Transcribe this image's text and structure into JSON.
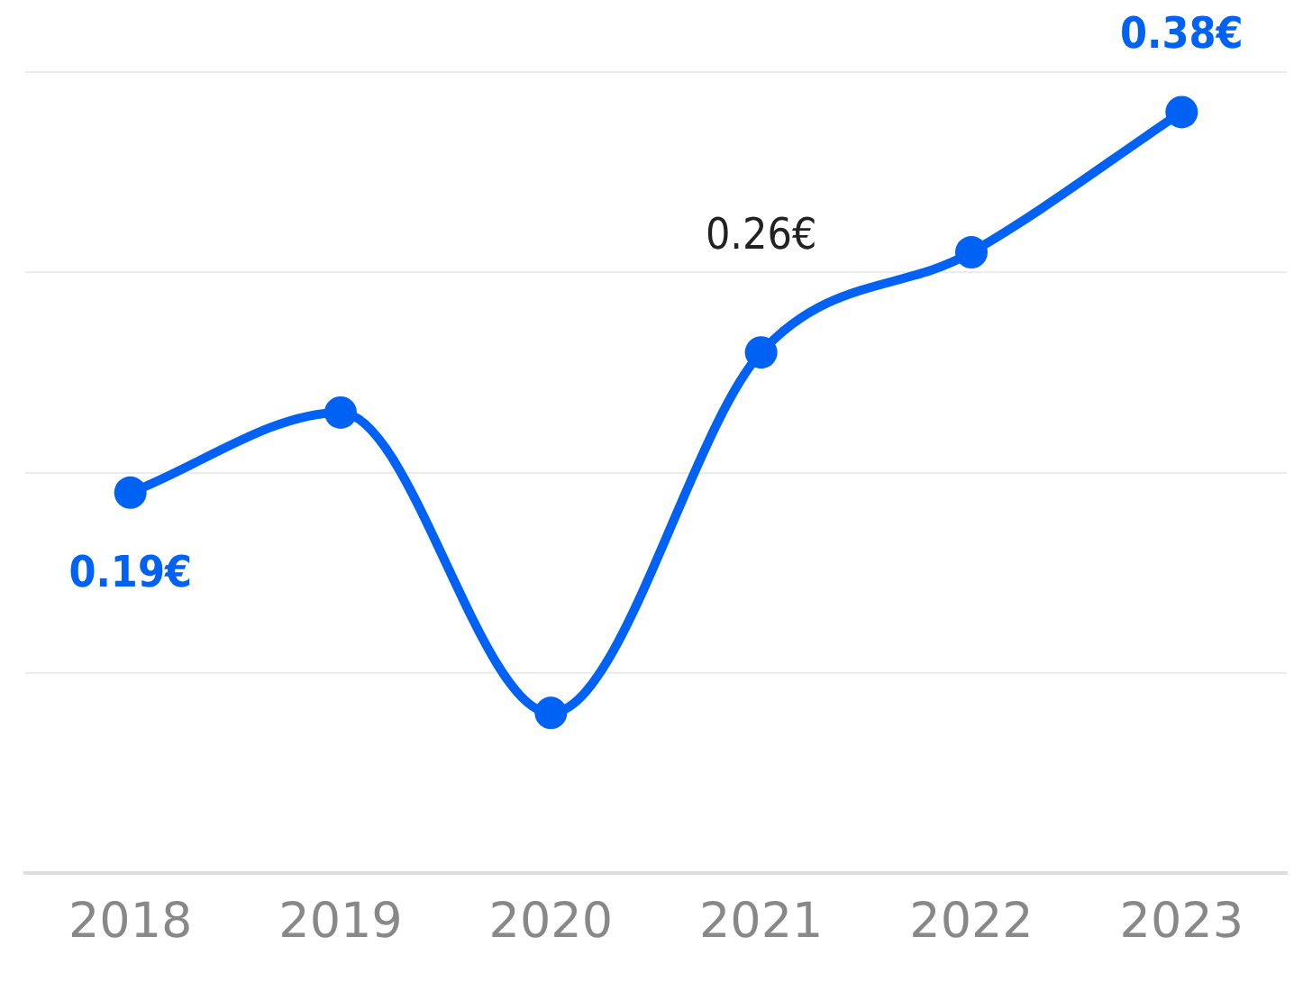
{
  "chart_data": {
    "type": "line",
    "categories": [
      "2018",
      "2019",
      "2020",
      "2021",
      "2022",
      "2023"
    ],
    "series": [
      {
        "color": "#0062f5",
        "values": [
          0.19,
          0.23,
          0.08,
          0.26,
          0.31,
          0.38
        ],
        "value_labels": [
          "0.19€",
          null,
          null,
          "0.26€",
          null,
          "0.38€"
        ]
      }
    ],
    "ylim": [
      0,
      0.4
    ],
    "yticks": [
      {
        "value": 0,
        "label": null
      },
      {
        "value": 0.1,
        "label": null
      },
      {
        "value": 0.2,
        "label": null
      },
      {
        "value": 0.3,
        "label": null
      },
      {
        "value": 0.4,
        "label": null
      }
    ],
    "grid": "y",
    "legend": false,
    "marker": "circle",
    "line_style": "solid",
    "tick_labels": "x"
  }
}
